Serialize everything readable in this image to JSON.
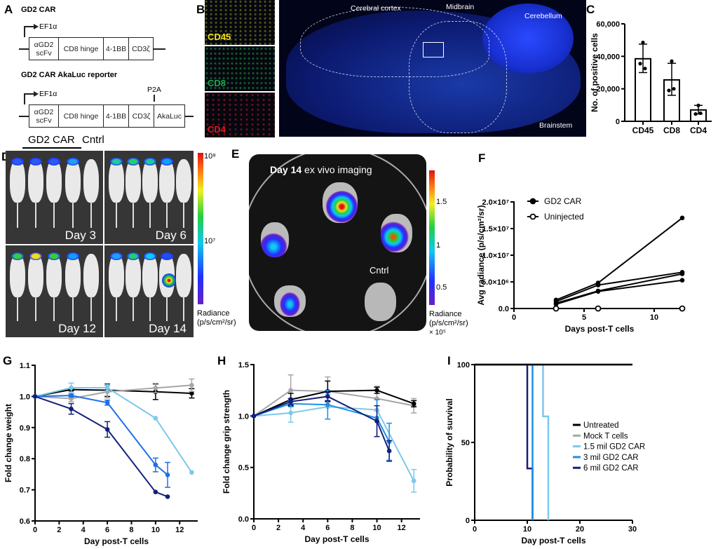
{
  "panels": {
    "A": {
      "label": "A",
      "construct1": {
        "title": "GD2 CAR",
        "promoter": "EF1α",
        "segments": [
          "αGD2\nscFv",
          "CD8 hinge",
          "4-1BB",
          "CD3ζ"
        ]
      },
      "construct2": {
        "title": "GD2 CAR AkaLuc reporter",
        "promoter": "EF1α",
        "cleavage": "P2A",
        "segments": [
          "αGD2\nscFv",
          "CD8 hinge",
          "4-1BB",
          "CD3ζ",
          "AkaLuc"
        ]
      }
    },
    "B": {
      "label": "B",
      "stains": [
        {
          "name": "CD45",
          "color": "#f2e21a"
        },
        {
          "name": "CD8",
          "color": "#1aa84a"
        },
        {
          "name": "CD4",
          "color": "#e01818"
        }
      ],
      "regions": [
        "Cerebral cortex",
        "Midbrain",
        "Cerebellum",
        "Brainstem"
      ]
    },
    "D": {
      "label": "D",
      "group_label": "GD2 CAR",
      "control_label": "Cntrl",
      "days": [
        "Day 3",
        "Day 6",
        "Day 12",
        "Day 14"
      ],
      "colorbar": {
        "max": "10⁸",
        "mid": "10⁷",
        "title": "Radiance",
        "unit": "(p/s/cm²/sr)"
      }
    },
    "E": {
      "label": "E",
      "title_bold": "Day 14",
      "title_rest": " ex vivo imaging",
      "control_label": "Cntrl",
      "colorbar": {
        "ticks": [
          "1.5",
          "1",
          "0.5"
        ],
        "title": "Radiance",
        "unit": "(p/s/cm²/sr)",
        "scale": "× 10⁵"
      }
    },
    "C": {
      "label": "C"
    },
    "F": {
      "label": "F"
    },
    "G": {
      "label": "G"
    },
    "H": {
      "label": "H"
    },
    "I": {
      "label": "I"
    }
  },
  "colors": {
    "untreated": "#000000",
    "mock": "#a6a6a6",
    "mil15": "#7cc8ec",
    "mil3": "#1f6fe6",
    "mil6": "#13207a"
  },
  "chart_data": [
    {
      "panel": "C",
      "type": "bar",
      "categories": [
        "CD45",
        "CD8",
        "CD4"
      ],
      "values": [
        38500,
        25500,
        7000
      ],
      "error_low": [
        30000,
        16000,
        4500
      ],
      "error_high": [
        47500,
        35700,
        9800
      ],
      "points": [
        [
          48500,
          35500,
          32500
        ],
        [
          37000,
          19000,
          20000
        ],
        [
          9800,
          4500,
          5000
        ]
      ],
      "ylabel": "No. of positive cells",
      "ylim": [
        0,
        60000
      ],
      "yticks": [
        0,
        20000,
        40000,
        60000
      ],
      "ytick_labels": [
        "0",
        "20,000",
        "40,000",
        "60,000"
      ]
    },
    {
      "panel": "F",
      "type": "line",
      "xlabel": "Days post-T cells",
      "ylabel": "Avg radiance (p/s/cm²/sr)",
      "xlim": [
        0,
        12.2
      ],
      "ylim": [
        0,
        20000000
      ],
      "xticks": [
        0,
        5,
        10
      ],
      "xtick_labels": [
        "0",
        "5",
        "10"
      ],
      "yticks": [
        0,
        5000000,
        10000000,
        15000000,
        20000000
      ],
      "ytick_labels": [
        "0.0",
        "5.0×10⁶",
        "1.0×10⁷",
        "1.5×10⁷",
        "2.0×10⁷"
      ],
      "legend": [
        "GD2 CAR",
        "Uninjected"
      ],
      "legend_position": "top-left",
      "series": [
        {
          "name": "GD2 CAR",
          "x": [
            3,
            6,
            12
          ],
          "y": [
            1600000,
            4800000,
            17000000
          ],
          "marker": "filled"
        },
        {
          "name": "GD2 CAR",
          "x": [
            3,
            6,
            12
          ],
          "y": [
            1300000,
            4400000,
            6800000
          ],
          "marker": "filled"
        },
        {
          "name": "GD2 CAR",
          "x": [
            3,
            6,
            12
          ],
          "y": [
            1000000,
            3300000,
            6500000
          ],
          "marker": "filled"
        },
        {
          "name": "GD2 CAR",
          "x": [
            3,
            6,
            12
          ],
          "y": [
            800000,
            3200000,
            5300000
          ],
          "marker": "filled"
        },
        {
          "name": "Uninjected",
          "x": [
            3,
            6,
            12
          ],
          "y": [
            0,
            0,
            0
          ],
          "marker": "open"
        }
      ]
    },
    {
      "panel": "G",
      "type": "line",
      "xlabel": "Day post-T cells",
      "ylabel": "Fold change weight",
      "xlim": [
        0,
        13.5
      ],
      "ylim": [
        0.6,
        1.1
      ],
      "xticks": [
        0,
        2,
        4,
        6,
        8,
        10,
        12
      ],
      "xtick_labels": [
        "0",
        "2",
        "4",
        "6",
        "8",
        "10",
        "12"
      ],
      "yticks": [
        0.6,
        0.7,
        0.8,
        0.9,
        1.0,
        1.1
      ],
      "ytick_labels": [
        "0.6",
        "0.7",
        "0.8",
        "0.9",
        "1.0",
        "1.1"
      ],
      "series": [
        {
          "name": "Untreated",
          "color": "#000000",
          "x": [
            0,
            3,
            6,
            10,
            13
          ],
          "y": [
            1.0,
            1.022,
            1.02,
            1.015,
            1.01
          ],
          "err": [
            0,
            0.004,
            0.02,
            0.025,
            0.015
          ]
        },
        {
          "name": "Mock T cells",
          "color": "#a6a6a6",
          "x": [
            0,
            3,
            6,
            10,
            13
          ],
          "y": [
            1.0,
            0.993,
            1.015,
            1.027,
            1.036
          ],
          "err": [
            0,
            0.01,
            0.02,
            0.015,
            0.02
          ]
        },
        {
          "name": "1.5 mil GD2 CAR",
          "color": "#7cc8ec",
          "x": [
            0,
            3,
            6,
            10,
            13
          ],
          "y": [
            1.0,
            1.028,
            1.028,
            0.93,
            0.756
          ],
          "err": [
            0,
            0.015,
            0.01,
            0,
            0
          ]
        },
        {
          "name": "3 mil GD2 CAR",
          "color": "#1f6fe6",
          "x": [
            0,
            3,
            6,
            10,
            11
          ],
          "y": [
            1.0,
            1.003,
            0.98,
            0.78,
            0.748
          ],
          "err": [
            0,
            0.005,
            0.008,
            0.022,
            0.04
          ]
        },
        {
          "name": "6 mil GD2 CAR",
          "color": "#13207a",
          "x": [
            0,
            3,
            6,
            10,
            11
          ],
          "y": [
            1.0,
            0.96,
            0.894,
            0.693,
            0.678
          ],
          "err": [
            0,
            0.017,
            0.025,
            0,
            0
          ]
        }
      ]
    },
    {
      "panel": "H",
      "type": "line",
      "xlabel": "Day post-T cells",
      "ylabel": "Fold change grip strength",
      "xlim": [
        0,
        13.5
      ],
      "ylim": [
        0,
        1.5
      ],
      "xticks": [
        0,
        2,
        4,
        6,
        8,
        10,
        12
      ],
      "xtick_labels": [
        "0",
        "2",
        "4",
        "6",
        "8",
        "10",
        "12"
      ],
      "yticks": [
        0,
        0.5,
        1.0,
        1.5
      ],
      "ytick_labels": [
        "0.0",
        "0.5",
        "1.0",
        "1.5"
      ],
      "series": [
        {
          "name": "Mock T cells",
          "color": "#a6a6a6",
          "x": [
            0,
            3,
            6,
            10,
            13
          ],
          "y": [
            1.0,
            1.25,
            1.24,
            1.17,
            1.1
          ],
          "err": [
            0,
            0.15,
            0.14,
            0.12,
            0.07
          ]
        },
        {
          "name": "Untreated",
          "color": "#000000",
          "x": [
            0,
            3,
            6,
            10,
            13
          ],
          "y": [
            1.0,
            1.16,
            1.24,
            1.25,
            1.12
          ],
          "err": [
            0,
            0.06,
            0.1,
            0.03,
            0.03
          ]
        },
        {
          "name": "1.5 mil GD2 CAR",
          "color": "#7cc8ec",
          "x": [
            0,
            3,
            6,
            10,
            13
          ],
          "y": [
            1.0,
            1.03,
            1.09,
            1.06,
            0.37
          ],
          "err": [
            0,
            0.09,
            0.12,
            0,
            0.11
          ]
        },
        {
          "name": "3 mil GD2 CAR",
          "color": "#1f8fe6",
          "x": [
            0,
            3,
            6,
            10,
            11
          ],
          "y": [
            1.0,
            1.12,
            1.11,
            0.98,
            0.75
          ],
          "err": [
            0,
            0.03,
            0.14,
            0.18,
            0.18
          ]
        },
        {
          "name": "6 mil GD2 CAR",
          "color": "#13207a",
          "x": [
            0,
            3,
            6,
            10,
            11
          ],
          "y": [
            1.0,
            1.14,
            1.19,
            0.95,
            0.66
          ],
          "err": [
            0,
            0.03,
            0.04,
            0.15,
            0.1
          ]
        }
      ]
    },
    {
      "panel": "I",
      "type": "step",
      "xlabel": "Day post-T cells",
      "ylabel": "Probability of survival",
      "xlim": [
        0,
        30
      ],
      "ylim": [
        0,
        100
      ],
      "xticks": [
        0,
        10,
        20,
        30
      ],
      "xtick_labels": [
        "0",
        "10",
        "20",
        "30"
      ],
      "yticks": [
        0,
        50,
        100
      ],
      "ytick_labels": [
        "0",
        "50",
        "100"
      ],
      "legend_position": "right",
      "series": [
        {
          "name": "Untreated",
          "color": "#000000",
          "x": [
            0,
            30
          ],
          "y": [
            100,
            100
          ]
        },
        {
          "name": "Mock T cells",
          "color": "#a6a6a6",
          "x": [
            0,
            30
          ],
          "y": [
            100,
            100
          ]
        },
        {
          "name": "1.5 mil GD2 CAR",
          "color": "#7cc8ec",
          "x": [
            0,
            13,
            14
          ],
          "y": [
            100,
            66.7,
            0
          ]
        },
        {
          "name": "3 mil GD2 CAR",
          "color": "#1f8fe6",
          "x": [
            0,
            11
          ],
          "y": [
            100,
            0
          ]
        },
        {
          "name": "6 mil GD2 CAR",
          "color": "#13207a",
          "x": [
            0,
            10,
            11
          ],
          "y": [
            100,
            33.3,
            0
          ]
        }
      ]
    }
  ]
}
